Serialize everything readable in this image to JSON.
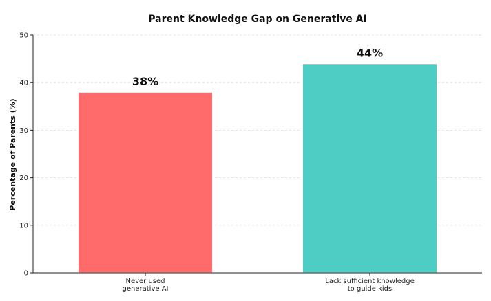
{
  "chart_data": {
    "type": "bar",
    "title": "Parent Knowledge Gap on Generative AI",
    "ylabel": "Percentage of Parents (%)",
    "xlabel": "",
    "ylim": [
      0,
      50
    ],
    "yticks": [
      0,
      10,
      20,
      30,
      40,
      50
    ],
    "grid": true,
    "categories": [
      [
        "Never used",
        "generative AI"
      ],
      [
        "Lack sufficient knowledge",
        "to guide kids"
      ]
    ],
    "values": [
      38,
      44
    ],
    "data_labels": [
      "38%",
      "44%"
    ],
    "colors": [
      "#ff6b6b",
      "#4ecdc4"
    ]
  }
}
